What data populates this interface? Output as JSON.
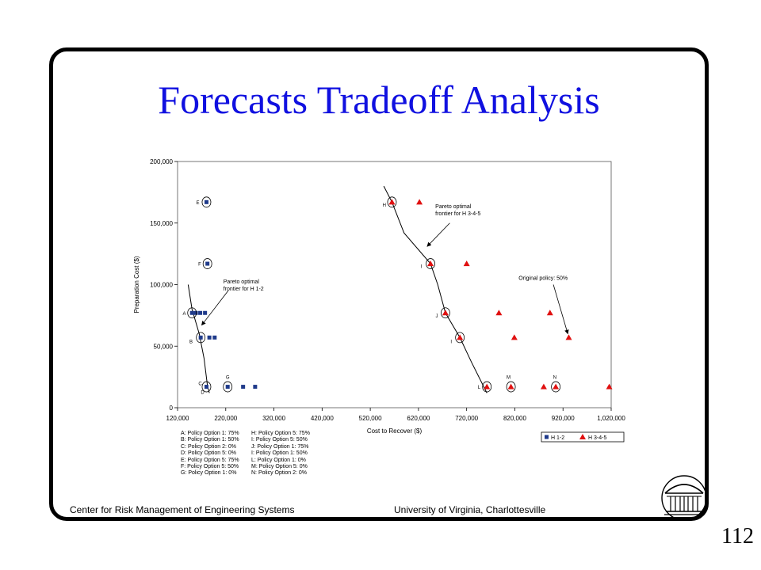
{
  "slide": {
    "title": "Forecasts Tradeoff Analysis",
    "footer_left": "Center for Risk Management of Engineering Systems",
    "footer_right": "University of Virginia, Charlottesville",
    "page_number": "112"
  },
  "colors": {
    "title": "#1010e0",
    "series_h12": "#1f3a8a",
    "series_h345": "#e01010"
  },
  "chart_data": {
    "type": "scatter",
    "xlabel": "Cost to Recover ($)",
    "ylabel": "Preparation Cost ($)",
    "xlim": [
      120000,
      1020000
    ],
    "ylim": [
      0,
      200000
    ],
    "xticks": [
      120000,
      220000,
      320000,
      420000,
      520000,
      620000,
      720000,
      820000,
      920000,
      1020000
    ],
    "xtick_labels": [
      "120,000",
      "220,000",
      "320,000",
      "420,000",
      "520,000",
      "620,000",
      "720,000",
      "820,000",
      "920,000",
      "1,020,000"
    ],
    "yticks": [
      0,
      50000,
      100000,
      150000,
      200000
    ],
    "ytick_labels": [
      "0",
      "50,000",
      "100,000",
      "150,000",
      "200,000"
    ],
    "grid": false,
    "legend_position": "bottom-right",
    "series": [
      {
        "name": "H 1-2",
        "marker": "square",
        "color": "#1f3a8a",
        "points": [
          {
            "x": 150000,
            "y": 77000
          },
          {
            "x": 158000,
            "y": 77000
          },
          {
            "x": 167000,
            "y": 77000
          },
          {
            "x": 177000,
            "y": 77000
          },
          {
            "x": 168000,
            "y": 57000
          },
          {
            "x": 186000,
            "y": 57000
          },
          {
            "x": 197000,
            "y": 57000
          },
          {
            "x": 180000,
            "y": 17000
          },
          {
            "x": 224000,
            "y": 17000
          },
          {
            "x": 256000,
            "y": 17000
          },
          {
            "x": 281000,
            "y": 17000
          },
          {
            "x": 180000,
            "y": 167000
          },
          {
            "x": 182000,
            "y": 117000
          }
        ]
      },
      {
        "name": "H 3-4-5",
        "marker": "triangle",
        "color": "#e01010",
        "points": [
          {
            "x": 565000,
            "y": 167000
          },
          {
            "x": 622000,
            "y": 167000
          },
          {
            "x": 645000,
            "y": 117000
          },
          {
            "x": 720000,
            "y": 117000
          },
          {
            "x": 676000,
            "y": 77000
          },
          {
            "x": 787000,
            "y": 77000
          },
          {
            "x": 893000,
            "y": 77000
          },
          {
            "x": 706000,
            "y": 57000
          },
          {
            "x": 819000,
            "y": 57000
          },
          {
            "x": 932000,
            "y": 57000
          },
          {
            "x": 762000,
            "y": 17000
          },
          {
            "x": 812000,
            "y": 17000
          },
          {
            "x": 880000,
            "y": 17000
          },
          {
            "x": 905000,
            "y": 17000
          },
          {
            "x": 1016000,
            "y": 17000
          }
        ]
      }
    ],
    "circled_points": [
      {
        "x": 150000,
        "y": 77000
      },
      {
        "x": 168000,
        "y": 57000
      },
      {
        "x": 180000,
        "y": 17000
      },
      {
        "x": 224000,
        "y": 17000
      },
      {
        "x": 180000,
        "y": 167000
      },
      {
        "x": 182000,
        "y": 117000
      },
      {
        "x": 565000,
        "y": 167000
      },
      {
        "x": 645000,
        "y": 117000
      },
      {
        "x": 676000,
        "y": 77000
      },
      {
        "x": 706000,
        "y": 57000
      },
      {
        "x": 762000,
        "y": 17000
      },
      {
        "x": 812000,
        "y": 17000
      },
      {
        "x": 905000,
        "y": 17000
      }
    ],
    "point_labels": [
      {
        "text": "E",
        "x": 162000,
        "y": 167000
      },
      {
        "text": "F",
        "x": 166000,
        "y": 117000
      },
      {
        "text": "A",
        "x": 134000,
        "y": 77000
      },
      {
        "text": "B",
        "x": 148000,
        "y": 54000
      },
      {
        "text": "C",
        "x": 167000,
        "y": 20000
      },
      {
        "text": "D",
        "x": 172000,
        "y": 13000
      },
      {
        "text": "G",
        "x": 224000,
        "y": 25000
      },
      {
        "text": "H",
        "x": 549000,
        "y": 165000
      },
      {
        "text": "I",
        "x": 626000,
        "y": 115000
      },
      {
        "text": "J",
        "x": 658000,
        "y": 75000
      },
      {
        "text": "I",
        "x": 688000,
        "y": 54000
      },
      {
        "text": "L",
        "x": 746000,
        "y": 17000
      },
      {
        "text": "M",
        "x": 807000,
        "y": 25000
      },
      {
        "text": "N",
        "x": 903000,
        "y": 25000
      }
    ],
    "frontier_h12": [
      {
        "x": 142000,
        "y": 100000
      },
      {
        "x": 150000,
        "y": 80000
      },
      {
        "x": 165000,
        "y": 60000
      },
      {
        "x": 175000,
        "y": 40000
      },
      {
        "x": 182000,
        "y": 18000
      },
      {
        "x": 186000,
        "y": 12000
      }
    ],
    "frontier_h345": [
      {
        "x": 548000,
        "y": 180000
      },
      {
        "x": 565000,
        "y": 167000
      },
      {
        "x": 590000,
        "y": 142000
      },
      {
        "x": 645000,
        "y": 117000
      },
      {
        "x": 660000,
        "y": 100000
      },
      {
        "x": 676000,
        "y": 77000
      },
      {
        "x": 706000,
        "y": 57000
      },
      {
        "x": 730000,
        "y": 37000
      },
      {
        "x": 762000,
        "y": 12000
      }
    ],
    "annotations": [
      {
        "lines": [
          "Pareto optimal",
          "frontier for H 3-4-5"
        ],
        "x": 655000,
        "y": 162000,
        "arrow_from": {
          "x": 685000,
          "y": 150000
        },
        "arrow_to": {
          "x": 638000,
          "y": 131000
        }
      },
      {
        "lines": [
          "Pareto optimal",
          "frontier for H 1-2"
        ],
        "x": 215000,
        "y": 101000,
        "arrow_from": {
          "x": 225000,
          "y": 95000
        },
        "arrow_to": {
          "x": 170000,
          "y": 67000
        }
      },
      {
        "lines": [
          "Original policy: 50%"
        ],
        "x": 828000,
        "y": 104000,
        "arrow_from": {
          "x": 900000,
          "y": 100000
        },
        "arrow_to": {
          "x": 930000,
          "y": 60000
        }
      }
    ],
    "policy_legend": {
      "col1": [
        "A: Policy Option 1: 75%",
        "B: Policy Option 1: 50%",
        "C: Policy Option 2: 0%",
        "D: Policy Option 5: 0%",
        "E: Policy Option 5: 75%",
        "F: Policy Option 5: 50%",
        "G: Policy Option 1: 0%"
      ],
      "col2": [
        "H: Policy Option 5: 75%",
        "I: Policy Option 5: 50%",
        "J: Policy Option 1: 75%",
        "I: Policy Option 1: 50%",
        "L: Policy Option 1: 0%",
        "M: Policy Option 5: 0%",
        "N: Policy Option 2: 0%"
      ]
    }
  }
}
